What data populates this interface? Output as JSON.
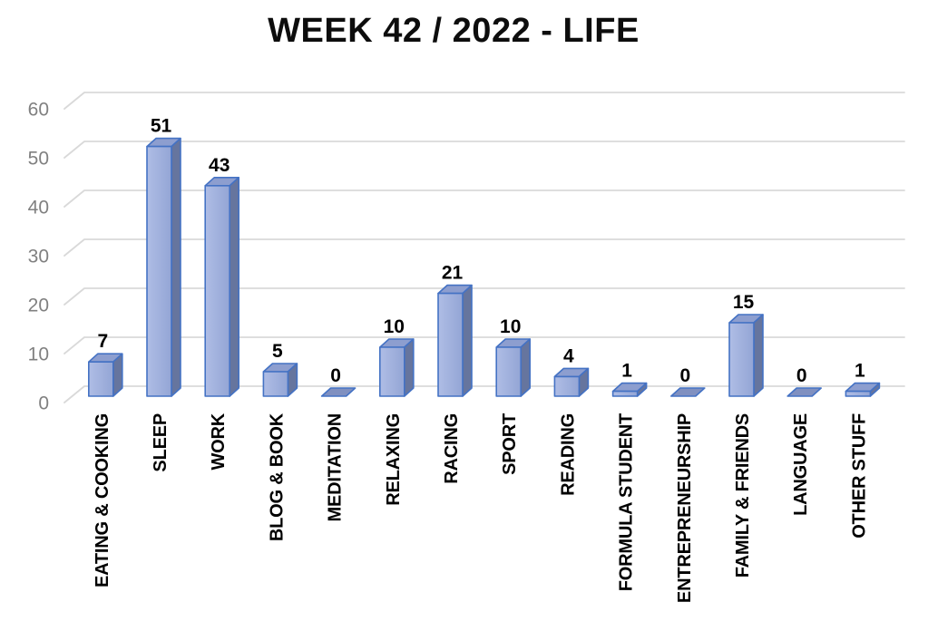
{
  "chart_data": {
    "type": "bar",
    "style": "3d-column",
    "title": "WEEK 42 / 2022 - LIFE",
    "categories": [
      "EATING & COOKING",
      "SLEEP",
      "WORK",
      "BLOG & BOOK",
      "MEDITATION",
      "RELAXING",
      "RACING",
      "SPORT",
      "READING",
      "FORMULA STUDENT",
      "ENTREPRENEURSHIP",
      "FAMILY & FRIENDS",
      "LANGUAGE",
      "OTHER STUFF"
    ],
    "values": [
      7,
      51,
      43,
      5,
      0,
      10,
      21,
      10,
      4,
      1,
      0,
      15,
      0,
      1
    ],
    "data_labels": [
      "7",
      "51",
      "43",
      "5",
      "0",
      "10",
      "21",
      "10",
      "4",
      "1",
      "0",
      "15",
      "0",
      "1"
    ],
    "yticks": [
      0,
      10,
      20,
      30,
      40,
      50,
      60
    ],
    "ylim": [
      0,
      60
    ],
    "xlabel": "",
    "ylabel": "",
    "grid": true,
    "legend": "none",
    "colors": {
      "bar_front_light": "#AFBDE5",
      "bar_front_dark": "#93A5D5",
      "bar_top": "#8D9ECF",
      "bar_side": "#66759E",
      "bar_zero_slab": "#8090C0",
      "bar_border": "#4472C4",
      "gridline": "#D9D9D9",
      "axis_text": "#808080",
      "label_text": "#000000",
      "title_text": "#0D0D0D"
    }
  }
}
